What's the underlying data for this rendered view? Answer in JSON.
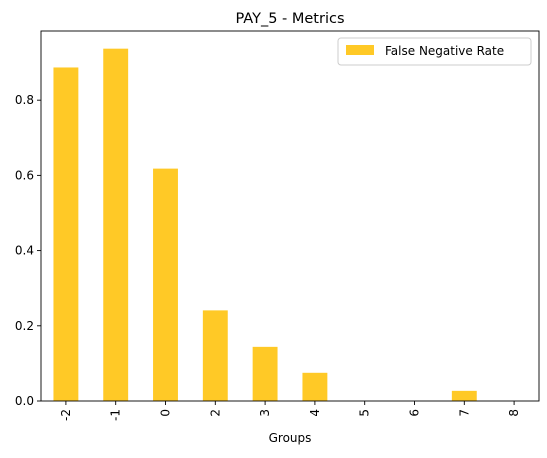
{
  "chart_data": {
    "type": "bar",
    "title": "PAY_5 - Metrics",
    "xlabel": "Groups",
    "ylabel": "",
    "categories": [
      "-2",
      "-1",
      "0",
      "2",
      "3",
      "4",
      "5",
      "6",
      "7",
      "8"
    ],
    "series": [
      {
        "name": "False Negative Rate",
        "values": [
          0.887,
          0.937,
          0.618,
          0.241,
          0.144,
          0.075,
          0.0,
          0.0,
          0.027,
          0.0
        ],
        "color": "#ffc926"
      }
    ],
    "ylim": [
      0,
      0.984
    ],
    "yticks": [
      "0.0",
      "0.2",
      "0.4",
      "0.6",
      "0.8"
    ],
    "ytick_values": [
      0,
      0.2,
      0.4,
      0.6,
      0.8
    ],
    "grid": false,
    "legend_position": "top-right",
    "x_tick_rotation": "vertical"
  }
}
